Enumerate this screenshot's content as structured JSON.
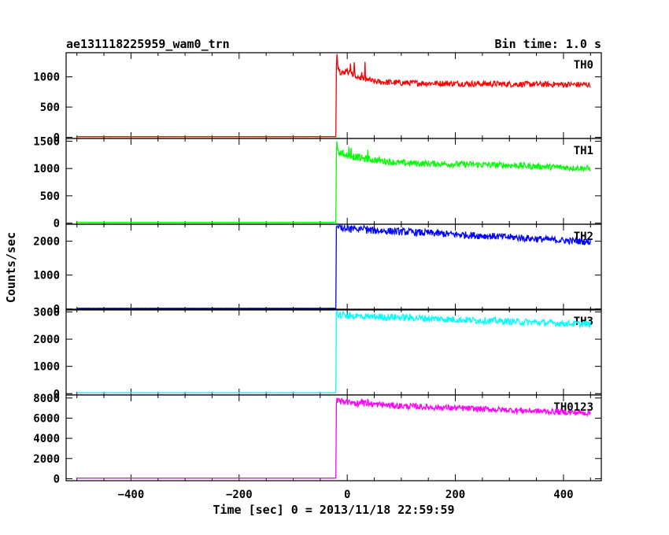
{
  "header": {
    "title": "ae131118225959_wam0_trn",
    "bin_time": "Bin time: 1.0 s"
  },
  "chart_data": {
    "type": "line",
    "title": "ae131118225959_wam0_trn",
    "xlabel": "Time [sec] 0 = 2013/11/18 22:59:59",
    "ylabel": "Counts/sec",
    "xlim": [
      -520,
      470
    ],
    "x_ticks": [
      -400,
      -200,
      0,
      200,
      400
    ],
    "data_x_range": [
      -500,
      450
    ],
    "panels": [
      {
        "name": "TH0",
        "color": "#ff0000",
        "ylim": [
          -20,
          1400
        ],
        "y_ticks": [
          0,
          500,
          1000
        ],
        "pre_trigger_level": 10,
        "onset_time": -20,
        "spike_peak": 1380,
        "series": [
          {
            "t": -500,
            "v": 10
          },
          {
            "t": -21,
            "v": 10
          },
          {
            "t": -20,
            "v": 1100
          },
          {
            "t": 0,
            "v": 1080
          },
          {
            "t": 20,
            "v": 1000
          },
          {
            "t": 50,
            "v": 920
          },
          {
            "t": 100,
            "v": 900
          },
          {
            "t": 200,
            "v": 890
          },
          {
            "t": 300,
            "v": 880
          },
          {
            "t": 400,
            "v": 875
          },
          {
            "t": 450,
            "v": 870
          }
        ]
      },
      {
        "name": "TH1",
        "color": "#00ff00",
        "ylim": [
          -20,
          1550
        ],
        "y_ticks": [
          0,
          500,
          1000,
          1500
        ],
        "pre_trigger_level": 15,
        "onset_time": -20,
        "spike_peak": 1500,
        "series": [
          {
            "t": -500,
            "v": 15
          },
          {
            "t": -21,
            "v": 15
          },
          {
            "t": -20,
            "v": 1300
          },
          {
            "t": 0,
            "v": 1250
          },
          {
            "t": 30,
            "v": 1180
          },
          {
            "t": 100,
            "v": 1100
          },
          {
            "t": 200,
            "v": 1080
          },
          {
            "t": 300,
            "v": 1060
          },
          {
            "t": 400,
            "v": 1020
          },
          {
            "t": 450,
            "v": 1000
          }
        ]
      },
      {
        "name": "TH2",
        "color": "#0000ff",
        "ylim": [
          -30,
          2500
        ],
        "y_ticks": [
          0,
          1000,
          2000
        ],
        "pre_trigger_level": 20,
        "onset_time": -20,
        "spike_peak": 2450,
        "series": [
          {
            "t": -500,
            "v": 20
          },
          {
            "t": -21,
            "v": 20
          },
          {
            "t": -20,
            "v": 2400
          },
          {
            "t": 0,
            "v": 2350
          },
          {
            "t": 100,
            "v": 2280
          },
          {
            "t": 200,
            "v": 2200
          },
          {
            "t": 300,
            "v": 2120
          },
          {
            "t": 400,
            "v": 2020
          },
          {
            "t": 450,
            "v": 1980
          }
        ]
      },
      {
        "name": "TH3",
        "color": "#00ffff",
        "ylim": [
          -50,
          3100
        ],
        "y_ticks": [
          0,
          1000,
          2000,
          3000
        ],
        "pre_trigger_level": 30,
        "onset_time": -20,
        "spike_peak": 3050,
        "series": [
          {
            "t": -500,
            "v": 30
          },
          {
            "t": -21,
            "v": 30
          },
          {
            "t": -20,
            "v": 2900
          },
          {
            "t": 0,
            "v": 2850
          },
          {
            "t": 100,
            "v": 2800
          },
          {
            "t": 200,
            "v": 2720
          },
          {
            "t": 300,
            "v": 2650
          },
          {
            "t": 400,
            "v": 2580
          },
          {
            "t": 450,
            "v": 2550
          }
        ]
      },
      {
        "name": "TH0123",
        "color": "#ff00ff",
        "ylim": [
          -200,
          8300
        ],
        "y_ticks": [
          0,
          2000,
          4000,
          6000,
          8000
        ],
        "pre_trigger_level": 60,
        "onset_time": -20,
        "spike_peak": 8000,
        "series": [
          {
            "t": -500,
            "v": 60
          },
          {
            "t": -21,
            "v": 60
          },
          {
            "t": -20,
            "v": 7700
          },
          {
            "t": 0,
            "v": 7550
          },
          {
            "t": 100,
            "v": 7200
          },
          {
            "t": 200,
            "v": 7000
          },
          {
            "t": 300,
            "v": 6800
          },
          {
            "t": 400,
            "v": 6600
          },
          {
            "t": 450,
            "v": 6500
          }
        ]
      }
    ]
  }
}
